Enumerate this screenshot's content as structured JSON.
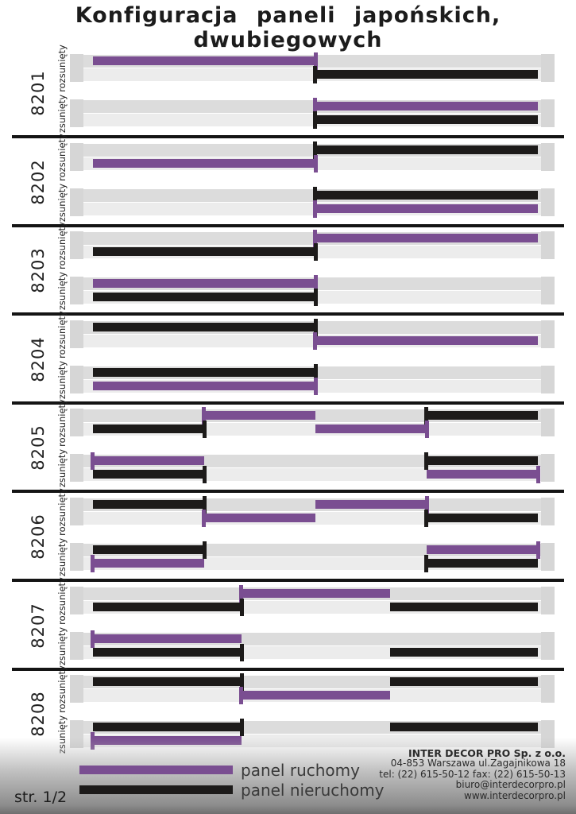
{
  "page": {
    "title_line1": "Konfiguracja paneli japońskich,",
    "title_line2": "dwubiegowych",
    "page_number": "str. 1/2"
  },
  "colors": {
    "movable": "#7a4e91",
    "fixed": "#1d1b1a"
  },
  "legend": {
    "items": [
      {
        "label": "panel ruchomy",
        "color": "#7a4e91",
        "type": "movable"
      },
      {
        "label": "panel nieruchomy",
        "color": "#1d1b1a",
        "type": "fixed"
      }
    ]
  },
  "company": {
    "name": "INTER DECOR PRO Sp. z o.o.",
    "address": "04-853 Warszawa ul.Zagajnikowa 18",
    "phone": "tel: (22) 615-50-12 fax: (22) 615-50-13",
    "email": "biuro@interdecorpro.pl",
    "website": "www.interdecorpro.pl"
  },
  "sections": [
    {
      "id": "8201",
      "states": [
        {
          "label": "rozsunięty",
          "bars": [
            {
              "rail": 0,
              "color": "movable",
              "start": 0,
              "end": 50,
              "tick": "right"
            },
            {
              "rail": 1,
              "color": "fixed",
              "start": 50,
              "end": 100,
              "tick": "left"
            }
          ]
        },
        {
          "label": "zsunięty",
          "bars": [
            {
              "rail": 0,
              "color": "movable",
              "start": 50,
              "end": 100,
              "tick": "left"
            },
            {
              "rail": 1,
              "color": "fixed",
              "start": 50,
              "end": 100,
              "tick": "left"
            }
          ]
        }
      ]
    },
    {
      "id": "8202",
      "states": [
        {
          "label": "rozsunięty",
          "bars": [
            {
              "rail": 0,
              "color": "fixed",
              "start": 50,
              "end": 100,
              "tick": "left"
            },
            {
              "rail": 1,
              "color": "movable",
              "start": 0,
              "end": 50,
              "tick": "right"
            }
          ]
        },
        {
          "label": "zsunięty",
          "bars": [
            {
              "rail": 0,
              "color": "fixed",
              "start": 50,
              "end": 100,
              "tick": "left"
            },
            {
              "rail": 1,
              "color": "movable",
              "start": 50,
              "end": 100,
              "tick": "left"
            }
          ]
        }
      ]
    },
    {
      "id": "8203",
      "states": [
        {
          "label": "rozsunięty",
          "bars": [
            {
              "rail": 0,
              "color": "movable",
              "start": 50,
              "end": 100,
              "tick": "left"
            },
            {
              "rail": 1,
              "color": "fixed",
              "start": 0,
              "end": 50,
              "tick": "right"
            }
          ]
        },
        {
          "label": "zsunięty",
          "bars": [
            {
              "rail": 0,
              "color": "movable",
              "start": 0,
              "end": 50,
              "tick": "right"
            },
            {
              "rail": 1,
              "color": "fixed",
              "start": 0,
              "end": 50,
              "tick": "right"
            }
          ]
        }
      ]
    },
    {
      "id": "8204",
      "states": [
        {
          "label": "rozsunięty",
          "bars": [
            {
              "rail": 0,
              "color": "fixed",
              "start": 0,
              "end": 50,
              "tick": "right"
            },
            {
              "rail": 1,
              "color": "movable",
              "start": 50,
              "end": 100,
              "tick": "left"
            }
          ]
        },
        {
          "label": "zsunięty",
          "bars": [
            {
              "rail": 0,
              "color": "fixed",
              "start": 0,
              "end": 50,
              "tick": "right"
            },
            {
              "rail": 1,
              "color": "movable",
              "start": 0,
              "end": 50,
              "tick": "right"
            }
          ]
        }
      ]
    },
    {
      "id": "8205",
      "states": [
        {
          "label": "rozsunięty",
          "bars": [
            {
              "rail": 0,
              "color": "movable",
              "start": 25,
              "end": 50,
              "tick": "left"
            },
            {
              "rail": 0,
              "color": "fixed",
              "start": 75,
              "end": 100,
              "tick": "left"
            },
            {
              "rail": 1,
              "color": "fixed",
              "start": 0,
              "end": 25,
              "tick": "right"
            },
            {
              "rail": 1,
              "color": "movable",
              "start": 50,
              "end": 75,
              "tick": "right"
            }
          ]
        },
        {
          "label": "zsunięty",
          "bars": [
            {
              "rail": 0,
              "color": "movable",
              "start": 0,
              "end": 25,
              "tick": "left"
            },
            {
              "rail": 0,
              "color": "fixed",
              "start": 75,
              "end": 100,
              "tick": "left"
            },
            {
              "rail": 1,
              "color": "fixed",
              "start": 0,
              "end": 25,
              "tick": "right"
            },
            {
              "rail": 1,
              "color": "movable",
              "start": 75,
              "end": 100,
              "tick": "right"
            }
          ]
        }
      ]
    },
    {
      "id": "8206",
      "states": [
        {
          "label": "rozsunięty",
          "bars": [
            {
              "rail": 0,
              "color": "fixed",
              "start": 0,
              "end": 25,
              "tick": "right"
            },
            {
              "rail": 0,
              "color": "movable",
              "start": 50,
              "end": 75,
              "tick": "right"
            },
            {
              "rail": 1,
              "color": "movable",
              "start": 25,
              "end": 50,
              "tick": "left"
            },
            {
              "rail": 1,
              "color": "fixed",
              "start": 75,
              "end": 100,
              "tick": "left"
            }
          ]
        },
        {
          "label": "zsunięty",
          "bars": [
            {
              "rail": 0,
              "color": "fixed",
              "start": 0,
              "end": 25,
              "tick": "right"
            },
            {
              "rail": 0,
              "color": "movable",
              "start": 75,
              "end": 100,
              "tick": "right"
            },
            {
              "rail": 1,
              "color": "movable",
              "start": 0,
              "end": 25,
              "tick": "left"
            },
            {
              "rail": 1,
              "color": "fixed",
              "start": 75,
              "end": 100,
              "tick": "left"
            }
          ]
        }
      ]
    },
    {
      "id": "8207",
      "states": [
        {
          "label": "rozsunięty",
          "bars": [
            {
              "rail": 0,
              "color": "movable",
              "start": 33.4,
              "end": 66.7,
              "tick": "left"
            },
            {
              "rail": 1,
              "color": "fixed",
              "start": 0,
              "end": 33.4,
              "tick": "right"
            },
            {
              "rail": 1,
              "color": "fixed",
              "start": 66.7,
              "end": 100,
              "tick": null
            }
          ]
        },
        {
          "label": "zsunięty",
          "bars": [
            {
              "rail": 0,
              "color": "movable",
              "start": 0,
              "end": 33.4,
              "tick": "left"
            },
            {
              "rail": 1,
              "color": "fixed",
              "start": 0,
              "end": 33.4,
              "tick": "right"
            },
            {
              "rail": 1,
              "color": "fixed",
              "start": 66.7,
              "end": 100,
              "tick": null
            }
          ]
        }
      ]
    },
    {
      "id": "8208",
      "states": [
        {
          "label": "rozsunięty",
          "bars": [
            {
              "rail": 0,
              "color": "fixed",
              "start": 0,
              "end": 33.4,
              "tick": "right"
            },
            {
              "rail": 0,
              "color": "fixed",
              "start": 66.7,
              "end": 100,
              "tick": null
            },
            {
              "rail": 1,
              "color": "movable",
              "start": 33.4,
              "end": 66.7,
              "tick": "left"
            }
          ]
        },
        {
          "label": "zsunięty",
          "bars": [
            {
              "rail": 0,
              "color": "fixed",
              "start": 0,
              "end": 33.4,
              "tick": "right"
            },
            {
              "rail": 0,
              "color": "fixed",
              "start": 66.7,
              "end": 100,
              "tick": null
            },
            {
              "rail": 1,
              "color": "movable",
              "start": 0,
              "end": 33.4,
              "tick": "left"
            }
          ]
        }
      ]
    }
  ]
}
